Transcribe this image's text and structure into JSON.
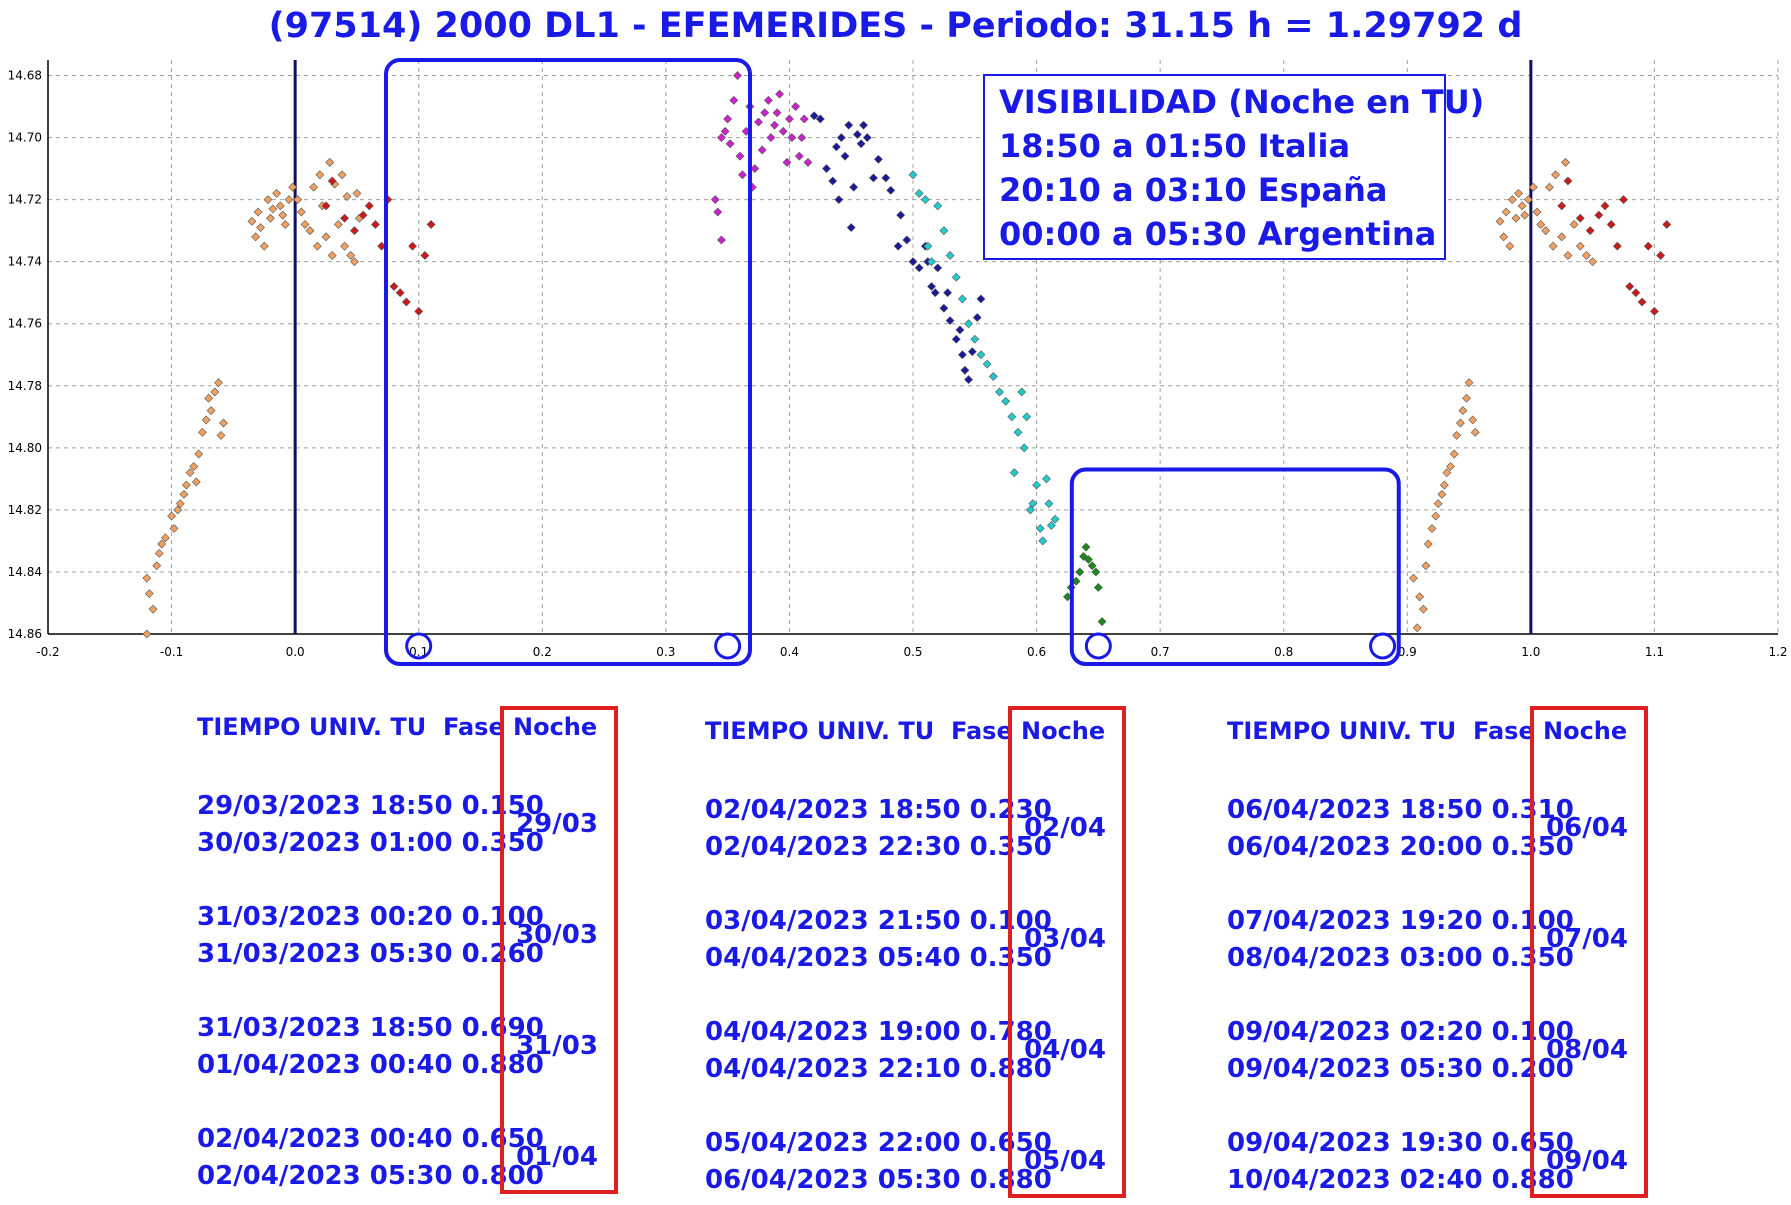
{
  "title": "(97514) 2000 DL1 - EFEMERIDES - Periodo: 31.15 h = 1.29792 d",
  "visibility": {
    "lines": [
      "VISIBILIDAD (Noche en TU)",
      "18:50 a 01:50 Italia",
      "20:10 a 03:10 España",
      "00:00 a 05:30 Argentina"
    ]
  },
  "chart_data": {
    "type": "scatter",
    "xlim": [
      -0.2,
      1.2
    ],
    "ylim": [
      14.86,
      14.675
    ],
    "y_inverted": true,
    "x_ticks": [
      "-0.2",
      "-0.1",
      "0.0",
      "0.1",
      "0.2",
      "0.3",
      "0.4",
      "0.5",
      "0.6",
      "0.7",
      "0.8",
      "0.9",
      "1.0",
      "1.1",
      "1.2"
    ],
    "y_ticks": [
      "14.68",
      "14.70",
      "14.72",
      "14.74",
      "14.76",
      "14.78",
      "14.80",
      "14.82",
      "14.84",
      "14.86"
    ],
    "grid": true,
    "vertical_lines": [
      0.0,
      1.0
    ],
    "highlight_boxes": [
      [
        0.08,
        0.36
      ],
      [
        0.635,
        0.885
      ]
    ],
    "circled_phases": [
      0.1,
      0.35,
      0.65,
      0.88
    ],
    "series": [
      {
        "color": "#f0a060",
        "points": [
          [
            -0.12,
            14.842
          ],
          [
            -0.118,
            14.847
          ],
          [
            -0.115,
            14.852
          ],
          [
            -0.112,
            14.838
          ],
          [
            -0.11,
            14.834
          ],
          [
            -0.108,
            14.831
          ],
          [
            -0.105,
            14.829
          ],
          [
            -0.1,
            14.822
          ],
          [
            -0.098,
            14.826
          ],
          [
            -0.095,
            14.82
          ],
          [
            -0.093,
            14.818
          ],
          [
            -0.09,
            14.815
          ],
          [
            -0.088,
            14.812
          ],
          [
            -0.085,
            14.808
          ],
          [
            -0.082,
            14.806
          ],
          [
            -0.08,
            14.811
          ],
          [
            -0.078,
            14.802
          ],
          [
            -0.075,
            14.795
          ],
          [
            -0.072,
            14.791
          ],
          [
            -0.07,
            14.784
          ],
          [
            -0.068,
            14.788
          ],
          [
            -0.065,
            14.782
          ],
          [
            -0.062,
            14.779
          ],
          [
            -0.06,
            14.796
          ],
          [
            -0.058,
            14.792
          ],
          [
            -0.035,
            14.727
          ],
          [
            -0.032,
            14.732
          ],
          [
            -0.03,
            14.724
          ],
          [
            -0.028,
            14.729
          ],
          [
            -0.025,
            14.735
          ],
          [
            -0.022,
            14.72
          ],
          [
            -0.02,
            14.726
          ],
          [
            -0.018,
            14.723
          ],
          [
            -0.015,
            14.718
          ],
          [
            -0.012,
            14.722
          ],
          [
            -0.01,
            14.725
          ],
          [
            -0.008,
            14.728
          ],
          [
            -0.005,
            14.72
          ],
          [
            -0.002,
            14.716
          ],
          [
            0.002,
            14.72
          ],
          [
            0.005,
            14.724
          ],
          [
            0.008,
            14.728
          ],
          [
            0.012,
            14.73
          ],
          [
            0.015,
            14.716
          ],
          [
            0.018,
            14.735
          ],
          [
            0.02,
            14.712
          ],
          [
            0.022,
            14.722
          ],
          [
            0.025,
            14.732
          ],
          [
            0.028,
            14.708
          ],
          [
            0.03,
            14.738
          ],
          [
            0.032,
            14.715
          ],
          [
            0.035,
            14.728
          ],
          [
            0.038,
            14.712
          ],
          [
            0.04,
            14.735
          ],
          [
            0.042,
            14.719
          ],
          [
            0.045,
            14.738
          ],
          [
            0.048,
            14.74
          ],
          [
            0.05,
            14.718
          ],
          [
            0.052,
            14.726
          ],
          [
            -0.12,
            14.86
          ],
          [
            0.905,
            14.842
          ],
          [
            0.91,
            14.848
          ],
          [
            0.913,
            14.852
          ],
          [
            0.915,
            14.838
          ],
          [
            0.917,
            14.831
          ],
          [
            0.92,
            14.826
          ],
          [
            0.923,
            14.822
          ],
          [
            0.925,
            14.818
          ],
          [
            0.928,
            14.815
          ],
          [
            0.93,
            14.812
          ],
          [
            0.932,
            14.808
          ],
          [
            0.935,
            14.806
          ],
          [
            0.938,
            14.802
          ],
          [
            0.94,
            14.796
          ],
          [
            0.943,
            14.792
          ],
          [
            0.945,
            14.788
          ],
          [
            0.948,
            14.784
          ],
          [
            0.95,
            14.779
          ],
          [
            0.953,
            14.791
          ],
          [
            0.955,
            14.795
          ],
          [
            0.975,
            14.727
          ],
          [
            0.978,
            14.732
          ],
          [
            0.98,
            14.724
          ],
          [
            0.983,
            14.735
          ],
          [
            0.985,
            14.72
          ],
          [
            0.988,
            14.726
          ],
          [
            0.99,
            14.718
          ],
          [
            0.993,
            14.722
          ],
          [
            0.995,
            14.725
          ],
          [
            0.998,
            14.72
          ],
          [
            1.002,
            14.716
          ],
          [
            1.005,
            14.724
          ],
          [
            1.008,
            14.728
          ],
          [
            1.012,
            14.73
          ],
          [
            1.015,
            14.716
          ],
          [
            1.018,
            14.735
          ],
          [
            1.02,
            14.712
          ],
          [
            1.025,
            14.732
          ],
          [
            1.028,
            14.708
          ],
          [
            1.03,
            14.738
          ],
          [
            1.035,
            14.728
          ],
          [
            1.04,
            14.735
          ],
          [
            1.045,
            14.738
          ],
          [
            1.05,
            14.74
          ],
          [
            0.908,
            14.858
          ]
        ]
      },
      {
        "color": "#cc1a1a",
        "points": [
          [
            0.025,
            14.722
          ],
          [
            0.03,
            14.714
          ],
          [
            0.04,
            14.726
          ],
          [
            0.048,
            14.73
          ],
          [
            0.055,
            14.725
          ],
          [
            0.06,
            14.722
          ],
          [
            0.065,
            14.728
          ],
          [
            0.07,
            14.735
          ],
          [
            0.075,
            14.72
          ],
          [
            0.08,
            14.748
          ],
          [
            0.085,
            14.75
          ],
          [
            0.09,
            14.753
          ],
          [
            0.095,
            14.735
          ],
          [
            0.1,
            14.756
          ],
          [
            0.105,
            14.738
          ],
          [
            0.11,
            14.728
          ],
          [
            1.025,
            14.722
          ],
          [
            1.03,
            14.714
          ],
          [
            1.04,
            14.726
          ],
          [
            1.048,
            14.73
          ],
          [
            1.055,
            14.725
          ],
          [
            1.06,
            14.722
          ],
          [
            1.065,
            14.728
          ],
          [
            1.07,
            14.735
          ],
          [
            1.075,
            14.72
          ],
          [
            1.08,
            14.748
          ],
          [
            1.085,
            14.75
          ],
          [
            1.09,
            14.753
          ],
          [
            1.095,
            14.735
          ],
          [
            1.1,
            14.756
          ],
          [
            1.105,
            14.738
          ],
          [
            1.11,
            14.728
          ]
        ]
      },
      {
        "color": "#cc22cc",
        "points": [
          [
            0.34,
            14.72
          ],
          [
            0.342,
            14.724
          ],
          [
            0.345,
            14.733
          ],
          [
            0.345,
            14.7
          ],
          [
            0.348,
            14.698
          ],
          [
            0.35,
            14.694
          ],
          [
            0.352,
            14.702
          ],
          [
            0.355,
            14.688
          ],
          [
            0.358,
            14.68
          ],
          [
            0.36,
            14.706
          ],
          [
            0.362,
            14.712
          ],
          [
            0.365,
            14.698
          ],
          [
            0.368,
            14.69
          ],
          [
            0.37,
            14.716
          ],
          [
            0.372,
            14.71
          ],
          [
            0.375,
            14.695
          ],
          [
            0.378,
            14.704
          ],
          [
            0.38,
            14.692
          ],
          [
            0.383,
            14.688
          ],
          [
            0.385,
            14.7
          ],
          [
            0.388,
            14.696
          ],
          [
            0.39,
            14.692
          ],
          [
            0.392,
            14.686
          ],
          [
            0.395,
            14.698
          ],
          [
            0.398,
            14.708
          ],
          [
            0.4,
            14.694
          ],
          [
            0.402,
            14.7
          ],
          [
            0.405,
            14.69
          ],
          [
            0.408,
            14.706
          ],
          [
            0.41,
            14.7
          ],
          [
            0.412,
            14.694
          ],
          [
            0.415,
            14.708
          ]
        ]
      },
      {
        "color": "#1a1a99",
        "points": [
          [
            0.42,
            14.693
          ],
          [
            0.425,
            14.694
          ],
          [
            0.43,
            14.71
          ],
          [
            0.435,
            14.714
          ],
          [
            0.438,
            14.703
          ],
          [
            0.44,
            14.72
          ],
          [
            0.442,
            14.7
          ],
          [
            0.445,
            14.706
          ],
          [
            0.448,
            14.696
          ],
          [
            0.45,
            14.729
          ],
          [
            0.452,
            14.716
          ],
          [
            0.455,
            14.699
          ],
          [
            0.458,
            14.702
          ],
          [
            0.46,
            14.696
          ],
          [
            0.463,
            14.7
          ],
          [
            0.468,
            14.713
          ],
          [
            0.472,
            14.707
          ],
          [
            0.478,
            14.713
          ],
          [
            0.482,
            14.717
          ],
          [
            0.488,
            14.735
          ],
          [
            0.49,
            14.725
          ],
          [
            0.495,
            14.733
          ],
          [
            0.5,
            14.74
          ],
          [
            0.505,
            14.742
          ],
          [
            0.51,
            14.735
          ],
          [
            0.512,
            14.74
          ],
          [
            0.515,
            14.748
          ],
          [
            0.518,
            14.75
          ],
          [
            0.52,
            14.742
          ],
          [
            0.525,
            14.755
          ],
          [
            0.528,
            14.75
          ],
          [
            0.53,
            14.759
          ],
          [
            0.535,
            14.765
          ],
          [
            0.538,
            14.762
          ],
          [
            0.54,
            14.77
          ],
          [
            0.542,
            14.775
          ],
          [
            0.545,
            14.778
          ],
          [
            0.548,
            14.769
          ],
          [
            0.552,
            14.758
          ],
          [
            0.555,
            14.752
          ]
        ]
      },
      {
        "color": "#22cccc",
        "points": [
          [
            0.5,
            14.712
          ],
          [
            0.505,
            14.718
          ],
          [
            0.51,
            14.72
          ],
          [
            0.512,
            14.735
          ],
          [
            0.515,
            14.74
          ],
          [
            0.52,
            14.722
          ],
          [
            0.525,
            14.73
          ],
          [
            0.53,
            14.738
          ],
          [
            0.535,
            14.745
          ],
          [
            0.54,
            14.752
          ],
          [
            0.545,
            14.76
          ],
          [
            0.55,
            14.765
          ],
          [
            0.555,
            14.77
          ],
          [
            0.56,
            14.773
          ],
          [
            0.565,
            14.777
          ],
          [
            0.57,
            14.782
          ],
          [
            0.575,
            14.785
          ],
          [
            0.58,
            14.79
          ],
          [
            0.585,
            14.795
          ],
          [
            0.59,
            14.8
          ],
          [
            0.592,
            14.79
          ],
          [
            0.595,
            14.82
          ],
          [
            0.6,
            14.812
          ],
          [
            0.603,
            14.826
          ],
          [
            0.605,
            14.83
          ],
          [
            0.608,
            14.81
          ],
          [
            0.61,
            14.818
          ],
          [
            0.612,
            14.825
          ],
          [
            0.615,
            14.823
          ],
          [
            0.582,
            14.808
          ],
          [
            0.597,
            14.818
          ],
          [
            0.588,
            14.782
          ]
        ]
      },
      {
        "color": "#1a8a1a",
        "points": [
          [
            0.625,
            14.848
          ],
          [
            0.628,
            14.845
          ],
          [
            0.632,
            14.843
          ],
          [
            0.635,
            14.84
          ],
          [
            0.638,
            14.835
          ],
          [
            0.64,
            14.832
          ],
          [
            0.642,
            14.836
          ],
          [
            0.645,
            14.838
          ],
          [
            0.648,
            14.84
          ],
          [
            0.65,
            14.845
          ],
          [
            0.653,
            14.856
          ]
        ]
      }
    ]
  },
  "tables": [
    {
      "header_time": "TIEMPO UNIV. TU",
      "header_phase": "Fase",
      "header_night": "Noche",
      "groups": [
        {
          "rows": [
            "29/03/2023  18:50 0.150",
            "30/03/2023  01:00 0.350"
          ],
          "night": "29/03"
        },
        {
          "rows": [
            "31/03/2023  00:20 0.100",
            "31/03/2023  05:30 0.260"
          ],
          "night": "30/03"
        },
        {
          "rows": [
            "31/03/2023  18:50 0.690",
            "01/04/2023  00:40 0.880"
          ],
          "night": "31/03"
        },
        {
          "rows": [
            "02/04/2023  00:40 0.650",
            "02/04/2023  05:30 0.800"
          ],
          "night": "01/04"
        }
      ]
    },
    {
      "header_time": "TIEMPO UNIV. TU",
      "header_phase": "Fase",
      "header_night": "Noche",
      "groups": [
        {
          "rows": [
            "02/04/2023  18:50 0.230",
            "02/04/2023  22:30 0.350"
          ],
          "night": "02/04"
        },
        {
          "rows": [
            "03/04/2023  21:50 0.100",
            "04/04/2023  05:40 0.350"
          ],
          "night": "03/04"
        },
        {
          "rows": [
            "04/04/2023  19:00 0.780",
            "04/04/2023  22:10 0.880"
          ],
          "night": "04/04"
        },
        {
          "rows": [
            "05/04/2023  22:00 0.650",
            "06/04/2023  05:30 0.880"
          ],
          "night": "05/04"
        }
      ]
    },
    {
      "header_time": "TIEMPO UNIV. TU",
      "header_phase": "Fase",
      "header_night": "Noche",
      "groups": [
        {
          "rows": [
            "06/04/2023  18:50 0.310",
            "06/04/2023  20:00 0.350"
          ],
          "night": "06/04"
        },
        {
          "rows": [
            "07/04/2023  19:20 0.100",
            "08/04/2023  03:00 0.350"
          ],
          "night": "07/04"
        },
        {
          "rows": [
            "09/04/2023  02:20 0.100",
            "09/04/2023  05:30 0.200"
          ],
          "night": "08/04"
        },
        {
          "rows": [
            "09/04/2023  19:30 0.650",
            "10/04/2023  02:40 0.880"
          ],
          "night": "09/04"
        }
      ]
    }
  ]
}
